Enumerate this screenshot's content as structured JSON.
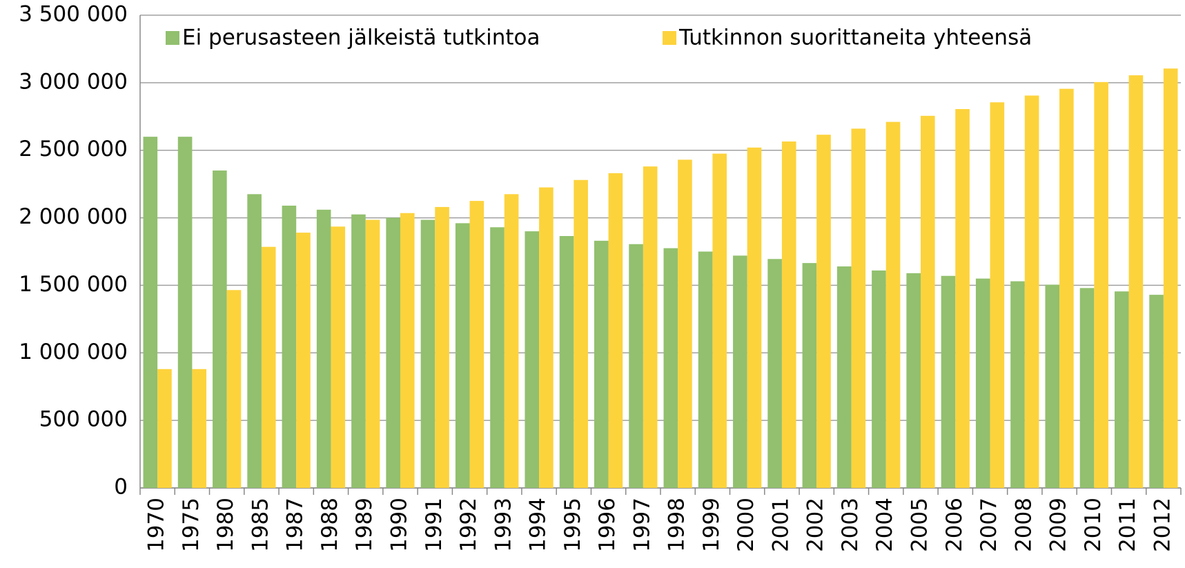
{
  "chart_data": {
    "type": "bar",
    "categories": [
      "1970",
      "1975",
      "1980",
      "1985",
      "1987",
      "1988",
      "1989",
      "1990",
      "1991",
      "1992",
      "1993",
      "1994",
      "1995",
      "1996",
      "1997",
      "1998",
      "1999",
      "2000",
      "2001",
      "2002",
      "2003",
      "2004",
      "2005",
      "2006",
      "2007",
      "2008",
      "2009",
      "2010",
      "2011",
      "2012"
    ],
    "series": [
      {
        "name": "Ei perusasteen jälkeistä tutkintoa",
        "color": "#92c06e",
        "values": [
          2600000,
          2600000,
          2350000,
          2175000,
          2090000,
          2060000,
          2025000,
          2000000,
          1985000,
          1960000,
          1930000,
          1900000,
          1865000,
          1830000,
          1805000,
          1775000,
          1750000,
          1720000,
          1695000,
          1665000,
          1640000,
          1610000,
          1590000,
          1570000,
          1550000,
          1530000,
          1505000,
          1480000,
          1455000,
          1430000
        ]
      },
      {
        "name": "Tutkinnon suorittaneita yhteensä",
        "color": "#fdd33c",
        "values": [
          880000,
          880000,
          1465000,
          1785000,
          1890000,
          1935000,
          1985000,
          2035000,
          2080000,
          2125000,
          2175000,
          2225000,
          2280000,
          2330000,
          2380000,
          2430000,
          2475000,
          2520000,
          2565000,
          2615000,
          2660000,
          2710000,
          2755000,
          2805000,
          2855000,
          2905000,
          2955000,
          3005000,
          3055000,
          3105000
        ]
      }
    ],
    "ylim": [
      0,
      3500000
    ],
    "yticks": [
      0,
      {
        "value": 500000,
        "label": "500 000"
      },
      {
        "value": 1000000,
        "label": "1 000 000"
      },
      {
        "value": 1500000,
        "label": "1 500 000"
      },
      {
        "value": 2000000,
        "label": "2 000 000"
      },
      {
        "value": 2500000,
        "label": "2 500 000"
      },
      {
        "value": 3000000,
        "label": "3 000 000"
      },
      {
        "value": 3500000,
        "label": "3 500 000"
      }
    ],
    "grid": true,
    "legend": "top"
  }
}
